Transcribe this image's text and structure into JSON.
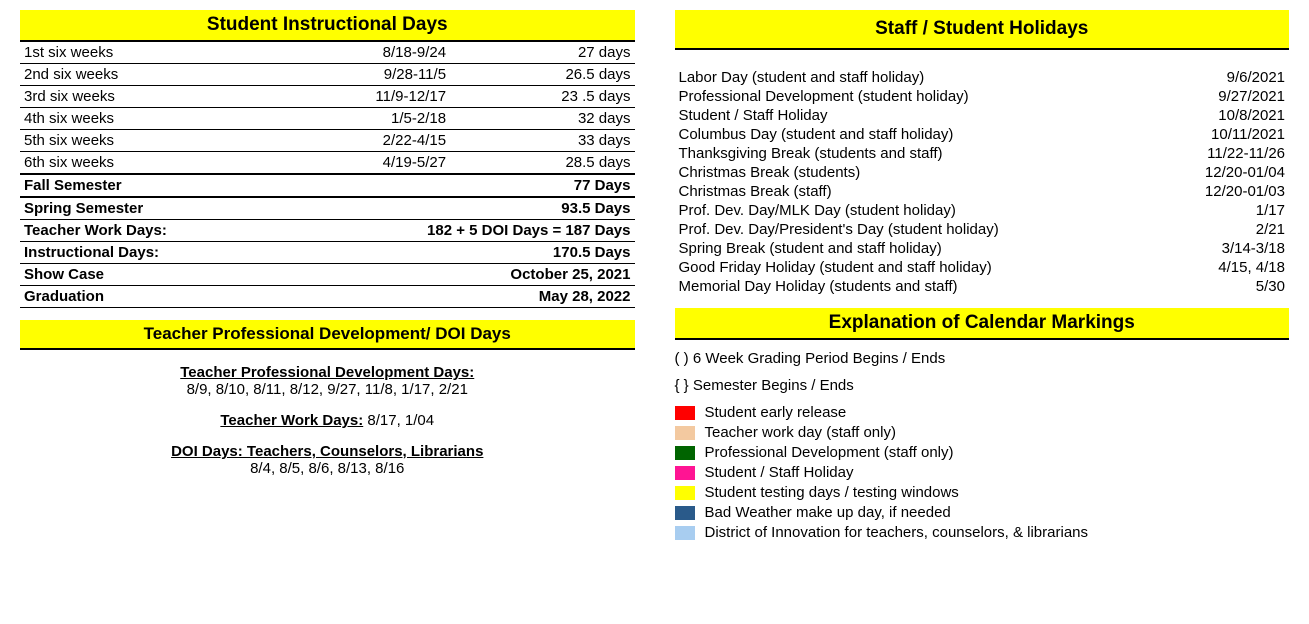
{
  "left": {
    "title": "Student Instructional Days",
    "weeks": [
      {
        "label": "1st six weeks",
        "range": "8/18-9/24",
        "days": "27 days"
      },
      {
        "label": "2nd six weeks",
        "range": "9/28-11/5",
        "days": "26.5 days"
      },
      {
        "label": "3rd six weeks",
        "range": "11/9-12/17",
        "days": "23 .5 days"
      },
      {
        "label": "4th six weeks",
        "range": "1/5-2/18",
        "days": "32 days"
      },
      {
        "label": "5th six weeks",
        "range": "2/22-4/15",
        "days": "33 days"
      },
      {
        "label": "6th six weeks",
        "range": "4/19-5/27",
        "days": "28.5 days"
      }
    ],
    "fall": {
      "label": "Fall Semester",
      "value": "77 Days"
    },
    "spring": {
      "label": "Spring Semester",
      "value": "93.5 Days"
    },
    "teacherWork": {
      "label": "Teacher Work Days:",
      "value": "182 + 5 DOI Days = 187 Days"
    },
    "instructional": {
      "label": "Instructional Days:",
      "value": "170.5 Days"
    },
    "showcase": {
      "label": "Show Case",
      "value": "October 25, 2021"
    },
    "graduation": {
      "label": "Graduation",
      "value": "May 28, 2022"
    },
    "pdBar": "Teacher Professional Development/ DOI Days",
    "pdHeader": "Teacher Professional Development Days:",
    "pdDates": "8/9, 8/10, 8/11, 8/12, 9/27, 11/8, 1/17, 2/21",
    "twdHeader": "Teacher Work Days:",
    "twdDates": " 8/17, 1/04",
    "doiHeader": "DOI Days: Teachers, Counselors, Librarians",
    "doiDates": "8/4, 8/5, 8/6, 8/13, 8/16"
  },
  "right": {
    "title": "Staff / Student Holidays",
    "holidays": [
      {
        "label": "Labor Day (student and staff holiday)",
        "date": "9/6/2021"
      },
      {
        "label": "Professional Development (student holiday)",
        "date": "9/27/2021"
      },
      {
        "label": "Student / Staff Holiday",
        "date": "10/8/2021"
      },
      {
        "label": "Columbus Day (student and staff holiday)",
        "date": "10/11/2021"
      },
      {
        "label": "Thanksgiving Break (students and staff)",
        "date": "11/22-11/26"
      },
      {
        "label": "Christmas Break (students)",
        "date": "12/20-01/04"
      },
      {
        "label": "Christmas Break (staff)",
        "date": "12/20-01/03"
      },
      {
        "label": "Prof. Dev. Day/MLK Day  (student holiday)",
        "date": "1/17"
      },
      {
        "label": "Prof. Dev. Day/President's Day (student holiday)",
        "date": "2/21"
      },
      {
        "label": "Spring Break (student and staff holiday)",
        "date": "3/14-3/18"
      },
      {
        "label": "Good Friday Holiday (student and staff holiday)",
        "date": "4/15, 4/18"
      },
      {
        "label": "Memorial Day Holiday (students and staff)",
        "date": "5/30"
      }
    ],
    "explanationTitle": "Explanation of Calendar Markings",
    "paren": "( ) 6 Week Grading Period Begins / Ends",
    "curly": "{ }  Semester Begins / Ends",
    "legend": [
      {
        "color": "#ff0000",
        "label": "Student early release"
      },
      {
        "color": "#f3c9a0",
        "label": "Teacher work day (staff only)"
      },
      {
        "color": "#006400",
        "label": "Professional Development (staff only)"
      },
      {
        "color": "#ff1493",
        "label": "Student / Staff Holiday"
      },
      {
        "color": "#ffff00",
        "label": "Student testing days / testing windows"
      },
      {
        "color": "#2a5a8a",
        "label": "Bad Weather make up day, if needed"
      },
      {
        "color": "#a8cdf0",
        "label": "District of Innovation for teachers, counselors, & librarians"
      }
    ]
  }
}
